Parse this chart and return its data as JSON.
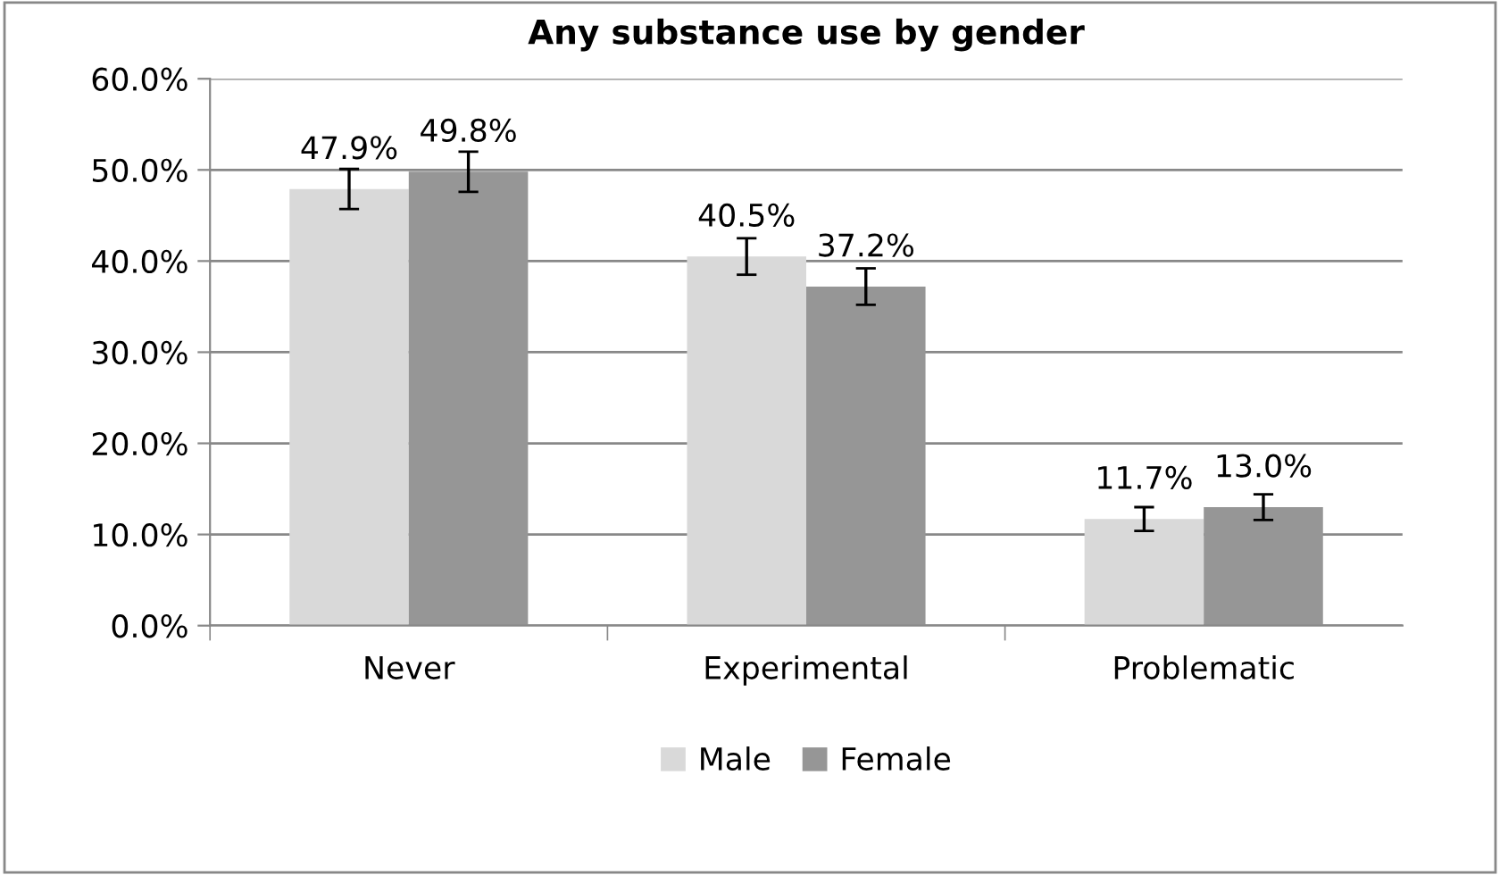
{
  "chart_data": {
    "type": "bar",
    "title": "Any substance use by gender",
    "categories": [
      "Never",
      "Experimental",
      "Problematic"
    ],
    "series": [
      {
        "name": "Male",
        "color": "#d9d9d9",
        "values": [
          47.9,
          40.5,
          11.7
        ],
        "errors": [
          2.2,
          2.0,
          1.3
        ],
        "value_labels": [
          "47.9%",
          "40.5%",
          "11.7%"
        ]
      },
      {
        "name": "Female",
        "color": "#969696",
        "values": [
          49.8,
          37.2,
          13.0
        ],
        "errors": [
          2.2,
          2.0,
          1.4
        ],
        "value_labels": [
          "49.8%",
          "37.2%",
          "13.0%"
        ]
      }
    ],
    "ylim": [
      0,
      60
    ],
    "yticks": [
      {
        "value": 0,
        "label": "0.0%"
      },
      {
        "value": 10,
        "label": "10.0%"
      },
      {
        "value": 20,
        "label": "20.0%"
      },
      {
        "value": 30,
        "label": "30.0%"
      },
      {
        "value": 40,
        "label": "40.0%"
      },
      {
        "value": 50,
        "label": "50.0%"
      },
      {
        "value": 60,
        "label": "60.0%"
      }
    ],
    "grid": "y",
    "legend": "bottom"
  }
}
